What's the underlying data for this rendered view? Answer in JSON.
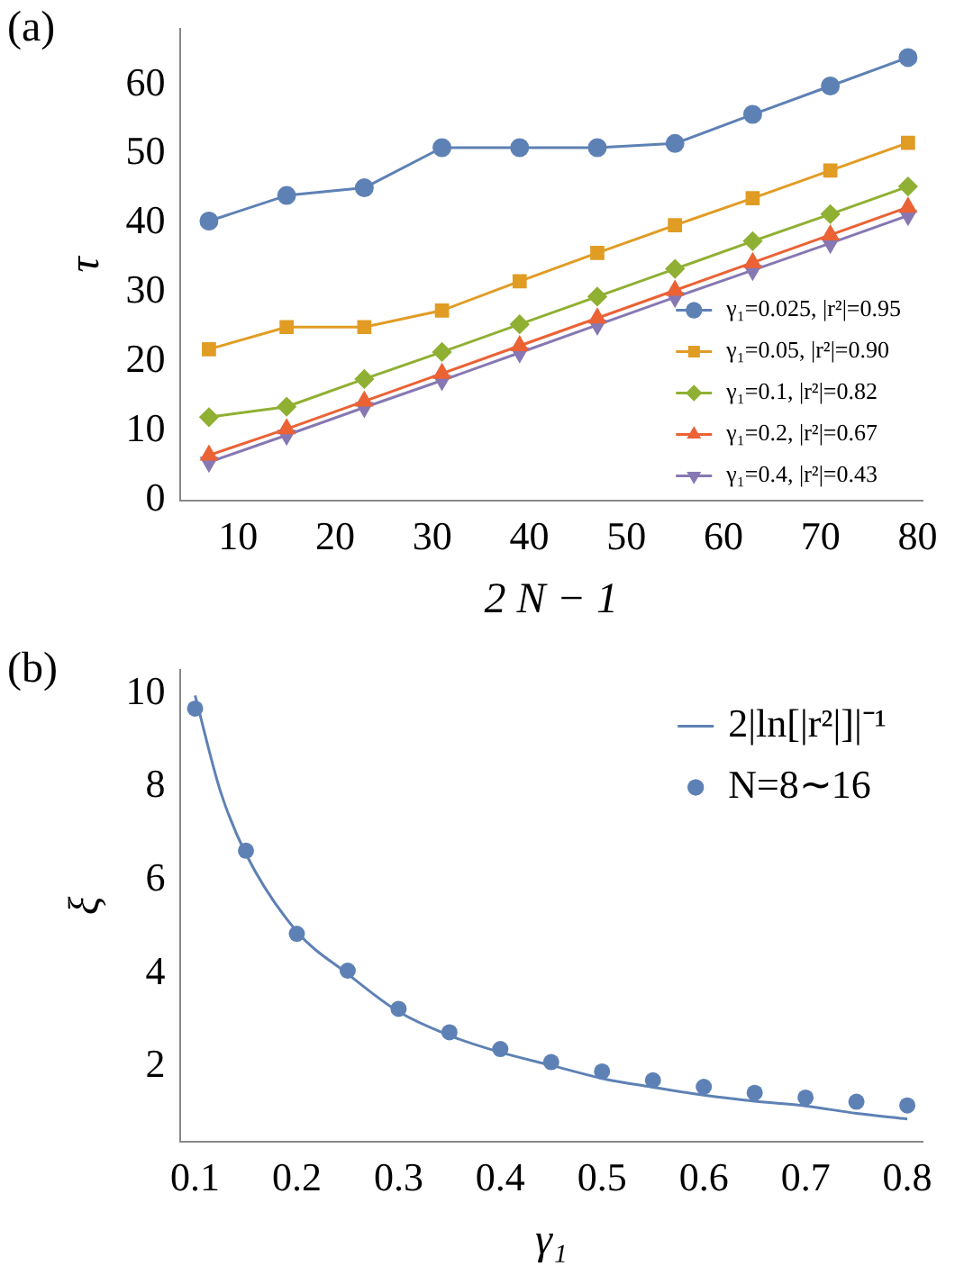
{
  "chart_data": [
    {
      "type": "line",
      "xlabel": "2 N − 1",
      "ylabel": "τ",
      "annotations": [
        "(a)"
      ],
      "x": [
        7,
        15,
        23,
        31,
        39,
        47,
        55,
        63,
        71,
        79
      ],
      "xlim": [
        4,
        80.5
      ],
      "ylim": [
        0,
        68
      ],
      "xticks": [
        10,
        20,
        30,
        40,
        50,
        60,
        70,
        80
      ],
      "yticks": [
        0,
        10,
        20,
        30,
        40,
        50,
        60
      ],
      "grid": false,
      "legend": "bottom right",
      "series": [
        {
          "name": "γ₁=0.025, |r²|=0.95",
          "color": "#5e81b5",
          "marker": "circle",
          "values": [
            40.3,
            44,
            45.1,
            50.9,
            50.9,
            50.9,
            51.5,
            55.7,
            59.8,
            63.9
          ]
        },
        {
          "name": "γ₁=0.05, |r²|=0.90",
          "color": "#e19c24",
          "marker": "square",
          "values": [
            21.8,
            25,
            25,
            27.4,
            31.6,
            35.7,
            39.7,
            43.6,
            47.6,
            51.6
          ]
        },
        {
          "name": "γ₁=0.1, |r²|=0.82",
          "color": "#8fb032",
          "marker": "diamond",
          "values": [
            12,
            13.5,
            17.5,
            21.4,
            25.4,
            29.4,
            33.4,
            37.4,
            41.3,
            45.3
          ]
        },
        {
          "name": "γ₁=0.2, |r²|=0.67",
          "color": "#eb6235",
          "marker": "triangle",
          "values": [
            6.5,
            10.3,
            14.3,
            18.3,
            22.3,
            26.3,
            30.3,
            34.3,
            38.3,
            42.3
          ]
        },
        {
          "name": "γ₁=0.4, |r²|=0.43",
          "color": "#8778b3",
          "marker": "triangle-down",
          "values": [
            5.5,
            9.4,
            13.4,
            17.3,
            21.3,
            25.3,
            29.3,
            33.2,
            37.1,
            41.1
          ]
        }
      ]
    },
    {
      "type": "line",
      "xlabel": "γ₁",
      "ylabel": "ξ",
      "annotations": [
        "(b)"
      ],
      "xlim": [
        0.085,
        0.815
      ],
      "ylim": [
        0.4,
        10.5
      ],
      "xticks": [
        0.1,
        0.2,
        0.3,
        0.4,
        0.5,
        0.6,
        0.7,
        0.8
      ],
      "yticks": [
        2,
        4,
        6,
        8,
        10
      ],
      "grid": false,
      "legend": "top right",
      "series": [
        {
          "name": "2|ln[|r²|]|⁻¹",
          "type": "line",
          "color": "#5e81b5",
          "marker": "none",
          "x": [
            0.1,
            0.125,
            0.15,
            0.2,
            0.25,
            0.3,
            0.35,
            0.4,
            0.45,
            0.5,
            0.55,
            0.6,
            0.65,
            0.7,
            0.75,
            0.8
          ],
          "values": [
            9.96,
            7.9,
            6.56,
            4.9,
            3.99,
            3.18,
            2.67,
            2.31,
            2.03,
            1.75,
            1.56,
            1.39,
            1.26,
            1.16,
            1.0,
            0.88
          ]
        },
        {
          "name": "N=8∼16",
          "type": "scatter",
          "color": "#5e81b5",
          "marker": "circle",
          "x": [
            0.1,
            0.15,
            0.2,
            0.25,
            0.3,
            0.35,
            0.4,
            0.45,
            0.5,
            0.55,
            0.6,
            0.65,
            0.7,
            0.75,
            0.8
          ],
          "values": [
            9.68,
            6.63,
            4.85,
            4.06,
            3.24,
            2.74,
            2.38,
            2.1,
            1.9,
            1.71,
            1.57,
            1.44,
            1.34,
            1.25,
            1.17
          ]
        }
      ]
    }
  ]
}
